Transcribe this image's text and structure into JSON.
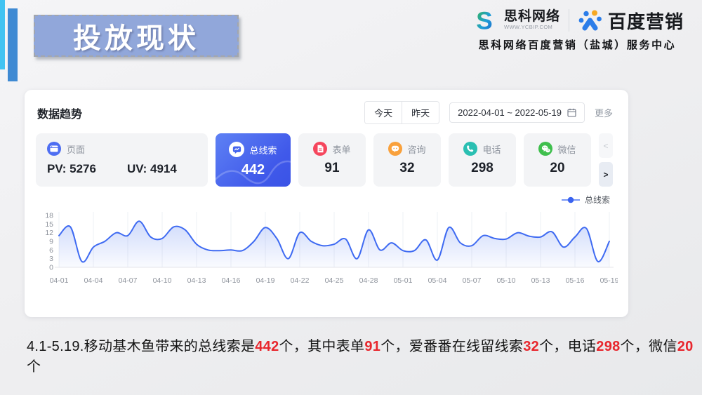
{
  "slide": {
    "title": "投放现状",
    "logo": {
      "logo_letter": "S",
      "company_name": "思科网络",
      "company_url": "WWW.YCBIP.COM",
      "brand_name": "百度营销",
      "service_center": "思科网络百度营销（盐城）服务中心"
    },
    "accent_colors": {
      "light_bar": "#41c3f2",
      "dark_bar": "#3f8ad3",
      "title_bg": "#91a7da"
    },
    "summary_segments": [
      {
        "text": "4.1-5.19.移动基木鱼带来的总线索是",
        "highlight": false
      },
      {
        "text": "442",
        "highlight": true
      },
      {
        "text": "个，其中表单",
        "highlight": false
      },
      {
        "text": "91",
        "highlight": true
      },
      {
        "text": "个，爱番番在线留线索",
        "highlight": false
      },
      {
        "text": "32",
        "highlight": true
      },
      {
        "text": "个，电话",
        "highlight": false
      },
      {
        "text": "298",
        "highlight": true
      },
      {
        "text": "个，微信",
        "highlight": false
      },
      {
        "text": "20",
        "highlight": true
      },
      {
        "text": "个",
        "highlight": false
      }
    ]
  },
  "panel": {
    "title": "数据趋势",
    "controls": {
      "today": "今天",
      "yesterday": "昨天",
      "date_range": "2022-04-01 ~ 2022-05-19",
      "more": "更多",
      "prev_arrow": "<",
      "next_arrow": ">"
    },
    "page_tab": {
      "label": "页面",
      "pv": "PV: 5276",
      "uv": "UV: 4914",
      "icon": "page-icon",
      "icon_color": "#4e6ef2"
    },
    "metric_tabs": [
      {
        "label": "总线索",
        "value": "442",
        "selected": true,
        "icon": "leads-icon",
        "icon_color": "#4464ee",
        "bg": "#4a6cf0"
      },
      {
        "label": "表单",
        "value": "91",
        "selected": false,
        "icon": "form-icon",
        "icon_color": "#f5465d"
      },
      {
        "label": "咨询",
        "value": "32",
        "selected": false,
        "icon": "consult-icon",
        "icon_color": "#f9a13c"
      },
      {
        "label": "电话",
        "value": "298",
        "selected": false,
        "icon": "phone-icon",
        "icon_color": "#2abfb2"
      },
      {
        "label": "微信",
        "value": "20",
        "selected": false,
        "icon": "wechat-icon",
        "icon_color": "#3fbf4d"
      }
    ],
    "legend": {
      "label": "总线索",
      "color": "#3e6af2"
    }
  },
  "chart_data": {
    "type": "area",
    "title": "数据趋势 - 总线索",
    "x": [
      "04-01",
      "04-02",
      "04-03",
      "04-04",
      "04-05",
      "04-06",
      "04-07",
      "04-08",
      "04-09",
      "04-10",
      "04-11",
      "04-12",
      "04-13",
      "04-14",
      "04-15",
      "04-16",
      "04-17",
      "04-18",
      "04-19",
      "04-20",
      "04-21",
      "04-22",
      "04-23",
      "04-24",
      "04-25",
      "04-26",
      "04-27",
      "04-28",
      "04-29",
      "04-30",
      "05-01",
      "05-02",
      "05-03",
      "05-04",
      "05-05",
      "05-06",
      "05-07",
      "05-08",
      "05-09",
      "05-10",
      "05-11",
      "05-12",
      "05-13",
      "05-14",
      "05-15",
      "05-16",
      "05-17",
      "05-18",
      "05-19"
    ],
    "series": [
      {
        "name": "总线索",
        "values": [
          11,
          14,
          2,
          7,
          9,
          12,
          11,
          16,
          10.5,
          10,
          14,
          13,
          8,
          6,
          5.8,
          6,
          5.8,
          9,
          13.8,
          10,
          3,
          12,
          9,
          7.5,
          8,
          9.8,
          3,
          13,
          6,
          8.5,
          5.8,
          5.8,
          9.5,
          2.5,
          13.8,
          8.5,
          7.5,
          11,
          10,
          9.8,
          12,
          10.8,
          10.5,
          12.3,
          7,
          10.5,
          13.5,
          2,
          9
        ]
      }
    ],
    "x_tick_every": 3,
    "x_tick_labels": [
      "04-01",
      "04-04",
      "04-07",
      "04-10",
      "04-13",
      "04-16",
      "04-19",
      "04-22",
      "04-25",
      "04-28",
      "05-01",
      "05-04",
      "05-07",
      "05-10",
      "05-13",
      "05-16",
      "05-19"
    ],
    "ylim": [
      0,
      18
    ],
    "yticks": [
      0,
      3,
      6,
      9,
      12,
      15,
      18
    ],
    "line_color": "#3e6af2",
    "fill_color": "#4a74f0",
    "grid": "vertical",
    "legend_position": "top-right"
  }
}
